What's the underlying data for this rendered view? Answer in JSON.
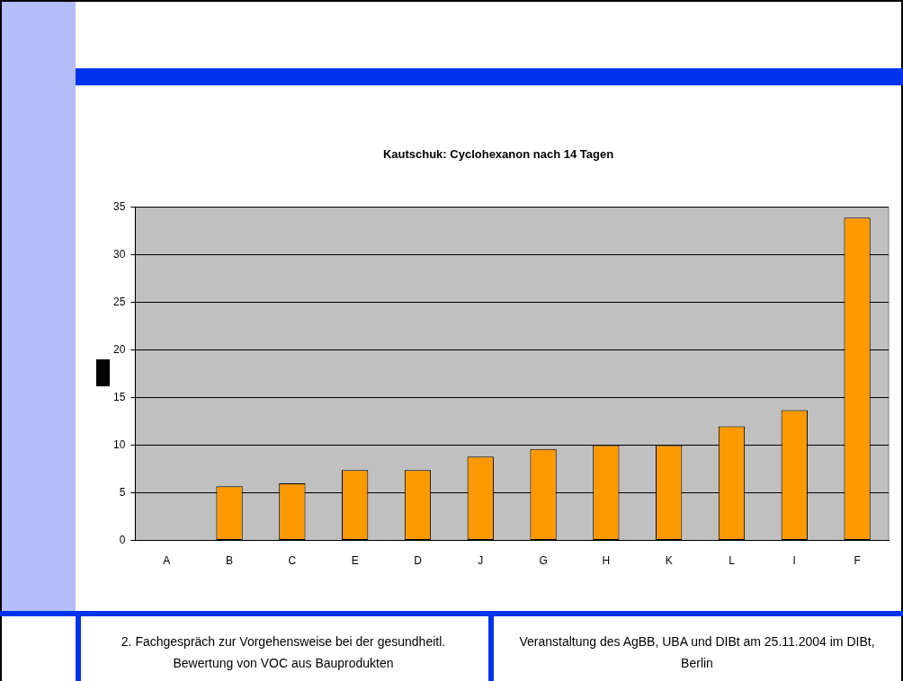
{
  "chart_data": {
    "type": "bar",
    "title": "Kautschuk: Cyclohexanon nach 14 Tagen",
    "categories": [
      "A",
      "B",
      "C",
      "E",
      "D",
      "J",
      "G",
      "H",
      "K",
      "L",
      "I",
      "F"
    ],
    "values": [
      0,
      5.7,
      6.0,
      7.4,
      7.4,
      8.8,
      9.6,
      10.0,
      10.0,
      12.0,
      13.7,
      33.9
    ],
    "color": "#ff9900",
    "ylim": [
      0,
      35
    ],
    "yticks": [
      0,
      5,
      10,
      15,
      20,
      25,
      30,
      35
    ],
    "grid": "y",
    "annotations": [
      "2. Fachgespräch zur Vorgehensweise bei der gesundheitl. Bewertung von VOC aus Bauprodukten",
      "Veranstaltung des AgBB, UBA und DIBt am 25.11.2004 im DIBt, Berlin"
    ]
  }
}
